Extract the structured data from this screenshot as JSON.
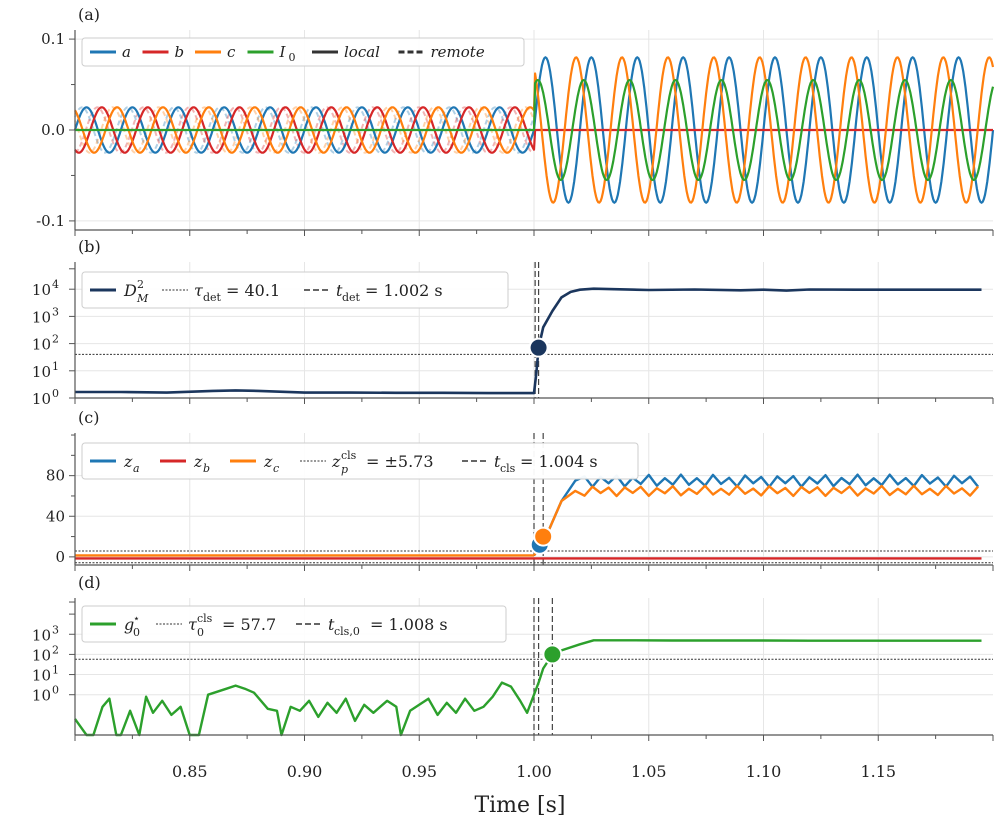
{
  "figure": {
    "xlabel": "Time [s]",
    "x_ticks": [
      "0.85",
      "0.90",
      "0.95",
      "1.00",
      "1.05",
      "1.10",
      "1.15"
    ],
    "x_tick_values": [
      0.85,
      0.9,
      0.95,
      1.0,
      1.05,
      1.1,
      1.15
    ],
    "xlim": [
      0.8,
      1.2
    ],
    "colors": {
      "a": "#1f77b4",
      "b": "#d62728",
      "c": "#ff7f0e",
      "I0": "#2ca02c",
      "navy": "#1b365d",
      "grid": "#e6e6e6",
      "axis": "#555555"
    }
  },
  "chart_data": [
    {
      "panel": "(a)",
      "type": "line",
      "ylim": [
        -0.11,
        0.11
      ],
      "y_ticks": [
        "0.1",
        "0.0",
        "-0.1"
      ],
      "y_tick_values": [
        0.1,
        0.0,
        -0.1
      ],
      "legend": [
        "a",
        "b",
        "c",
        "I",
        "0",
        "local",
        "remote"
      ],
      "series": [
        {
          "name": "a",
          "amplitude_before": 0.025,
          "amplitude_after": 0.08,
          "phase_deg": 0
        },
        {
          "name": "b",
          "amplitude_before": 0.025,
          "amplitude_after": 0.0,
          "phase_deg": -120
        },
        {
          "name": "c",
          "amplitude_before": 0.025,
          "amplitude_after": 0.08,
          "phase_deg": 120
        },
        {
          "name": "I0",
          "amplitude_before": 0.0,
          "amplitude_after": 0.055,
          "phase_deg": 60
        }
      ],
      "fault_time": 1.0,
      "frequency_hz": 50
    },
    {
      "panel": "(b)",
      "type": "line",
      "scale": "log",
      "ylim_log10": [
        0,
        5.0
      ],
      "y_ticks_base": [
        "10",
        "10",
        "10",
        "10",
        "10"
      ],
      "y_ticks_exp": [
        "0",
        "1",
        "2",
        "3",
        "4"
      ],
      "y_tick_values_log10": [
        0,
        1,
        2,
        3,
        4
      ],
      "legend": {
        "series": "D",
        "series_sub": "M",
        "series_sup": "2",
        "threshold": "τ",
        "threshold_sub": "det",
        "threshold_value": "= 40.1",
        "time": "t",
        "time_sub": "det",
        "time_value": "= 1.002 s"
      },
      "threshold_log10": 1.603,
      "t_marker": 1.002,
      "marker": {
        "x": 1.002,
        "y_log10": 1.85
      },
      "x": [
        0.8,
        0.82,
        0.84,
        0.86,
        0.87,
        0.88,
        0.9,
        0.92,
        0.94,
        0.96,
        0.98,
        0.995,
        1.0,
        1.001,
        1.002,
        1.004,
        1.008,
        1.012,
        1.016,
        1.02,
        1.026,
        1.035,
        1.05,
        1.07,
        1.09,
        1.1,
        1.11,
        1.12,
        1.14,
        1.16,
        1.18,
        1.195
      ],
      "y_log10": [
        0.22,
        0.22,
        0.2,
        0.26,
        0.28,
        0.26,
        0.2,
        0.2,
        0.19,
        0.19,
        0.18,
        0.18,
        0.18,
        0.9,
        1.85,
        2.6,
        3.2,
        3.7,
        3.9,
        3.98,
        4.02,
        4.0,
        3.97,
        3.99,
        3.96,
        3.98,
        3.95,
        3.99,
        3.98,
        3.98,
        3.98,
        3.98
      ]
    },
    {
      "panel": "(c)",
      "type": "line",
      "ylim": [
        -8,
        122
      ],
      "y_ticks": [
        "0",
        "40",
        "80"
      ],
      "y_tick_values": [
        0,
        40,
        80
      ],
      "legend": {
        "series": [
          "z",
          "z",
          "z"
        ],
        "series_sub": [
          "a",
          "b",
          "c"
        ],
        "threshold": "z",
        "threshold_sub": "p",
        "threshold_sup": "cls",
        "threshold_value": "= ±5.73",
        "time": "t",
        "time_sub": "cls",
        "time_value": "= 1.004 s"
      },
      "thresholds": [
        5.73,
        -5.73
      ],
      "t_markers": [
        1.0,
        1.004
      ],
      "markers": [
        {
          "series": "a",
          "x": 1.0025,
          "y": 12
        },
        {
          "series": "c",
          "x": 1.004,
          "y": 20
        }
      ],
      "series": [
        {
          "name": "a",
          "mean_after": 75,
          "ripple": 6
        },
        {
          "name": "b",
          "value": -1.5
        },
        {
          "name": "c",
          "mean_after": 65,
          "ripple": 5
        },
        {
          "name": "c_before",
          "value": 1.5
        }
      ]
    },
    {
      "panel": "(d)",
      "type": "line",
      "scale": "log",
      "ylim_log10": [
        -2.0,
        4.8
      ],
      "y_ticks_base": [
        "10",
        "10",
        "10",
        "10"
      ],
      "y_ticks_exp": [
        "0",
        "1",
        "2",
        "3"
      ],
      "y_tick_values_log10": [
        0,
        1,
        2,
        3
      ],
      "legend": {
        "series": "g",
        "series_sub": "0",
        "series_sup": "⋆",
        "threshold": "τ",
        "threshold_sub": "0",
        "threshold_sup": "cls",
        "threshold_value": "= 57.7",
        "time": "t",
        "time_sub": "cls,0",
        "time_value": "= 1.008 s"
      },
      "threshold_log10": 1.761,
      "t_markers": [
        1.0,
        1.002,
        1.008
      ],
      "marker": {
        "x": 1.008,
        "y_log10": 2.0
      },
      "x": [
        0.8,
        0.805,
        0.808,
        0.812,
        0.815,
        0.818,
        0.82,
        0.824,
        0.828,
        0.831,
        0.834,
        0.838,
        0.842,
        0.846,
        0.85,
        0.854,
        0.856,
        0.858,
        0.862,
        0.866,
        0.87,
        0.874,
        0.878,
        0.884,
        0.888,
        0.89,
        0.894,
        0.898,
        0.902,
        0.906,
        0.91,
        0.914,
        0.918,
        0.922,
        0.926,
        0.93,
        0.936,
        0.94,
        0.942,
        0.946,
        0.95,
        0.954,
        0.958,
        0.962,
        0.966,
        0.97,
        0.974,
        0.978,
        0.982,
        0.986,
        0.99,
        0.994,
        0.997,
        1.0,
        1.002,
        1.004,
        1.008,
        1.012,
        1.02,
        1.026,
        1.04,
        1.06,
        1.08,
        1.1,
        1.12,
        1.14,
        1.16,
        1.18,
        1.195
      ],
      "y_log10": [
        -1.2,
        -2.0,
        -2.0,
        -0.6,
        -0.2,
        -2.0,
        -2.0,
        -0.8,
        -2.0,
        -0.1,
        -0.9,
        -0.3,
        -1.0,
        -0.6,
        -2.0,
        -2.0,
        -1.0,
        0.0,
        0.15,
        0.3,
        0.45,
        0.3,
        0.1,
        -0.7,
        -0.8,
        -2.0,
        -0.6,
        -0.8,
        -0.3,
        -1.1,
        -0.4,
        -0.9,
        -0.2,
        -1.3,
        -0.5,
        -0.9,
        -0.3,
        -0.6,
        -2.0,
        -0.8,
        -0.5,
        -0.2,
        -1.0,
        -0.4,
        -0.9,
        -0.2,
        -0.8,
        -0.6,
        -0.1,
        0.6,
        0.4,
        -0.3,
        -0.9,
        0.0,
        0.6,
        1.3,
        2.0,
        2.2,
        2.5,
        2.7,
        2.7,
        2.69,
        2.69,
        2.69,
        2.68,
        2.68,
        2.68,
        2.68,
        2.68
      ]
    }
  ]
}
